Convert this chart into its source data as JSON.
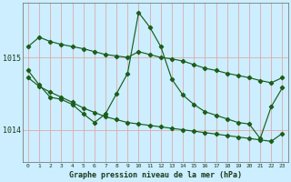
{
  "title": "Graphe pression niveau de la mer (hPa)",
  "background_color": "#cceeff",
  "grid_color": "#ddaaaa",
  "line_color": "#1a5e1a",
  "ylim": [
    1013.55,
    1015.75
  ],
  "xlim": [
    -0.5,
    23.5
  ],
  "yticks": [
    1014,
    1015
  ],
  "xticks": [
    0,
    1,
    2,
    3,
    4,
    5,
    6,
    7,
    8,
    9,
    10,
    11,
    12,
    13,
    14,
    15,
    16,
    17,
    18,
    19,
    20,
    21,
    22,
    23
  ],
  "series1": [
    1015.15,
    1015.28,
    1015.22,
    1015.18,
    1015.15,
    1015.12,
    1015.08,
    1015.04,
    1015.02,
    1015.0,
    1015.08,
    1015.04,
    1015.0,
    1014.98,
    1014.95,
    1014.9,
    1014.85,
    1014.82,
    1014.78,
    1014.75,
    1014.72,
    1014.68,
    1014.65,
    1014.72
  ],
  "series2": [
    1014.72,
    1014.6,
    1014.52,
    1014.45,
    1014.38,
    1014.3,
    1014.24,
    1014.18,
    1014.14,
    1014.1,
    1014.08,
    1014.06,
    1014.04,
    1014.02,
    1014.0,
    1013.98,
    1013.96,
    1013.94,
    1013.92,
    1013.9,
    1013.88,
    1013.86,
    1013.84,
    1013.95
  ],
  "series3": [
    1014.82,
    1014.62,
    1014.45,
    1014.42,
    1014.35,
    1014.22,
    1014.1,
    1014.22,
    1014.5,
    1014.78,
    1015.62,
    1015.42,
    1015.15,
    1014.7,
    1014.48,
    1014.35,
    1014.25,
    1014.2,
    1014.15,
    1014.1,
    1014.08,
    1013.88,
    1014.32,
    1014.58
  ]
}
